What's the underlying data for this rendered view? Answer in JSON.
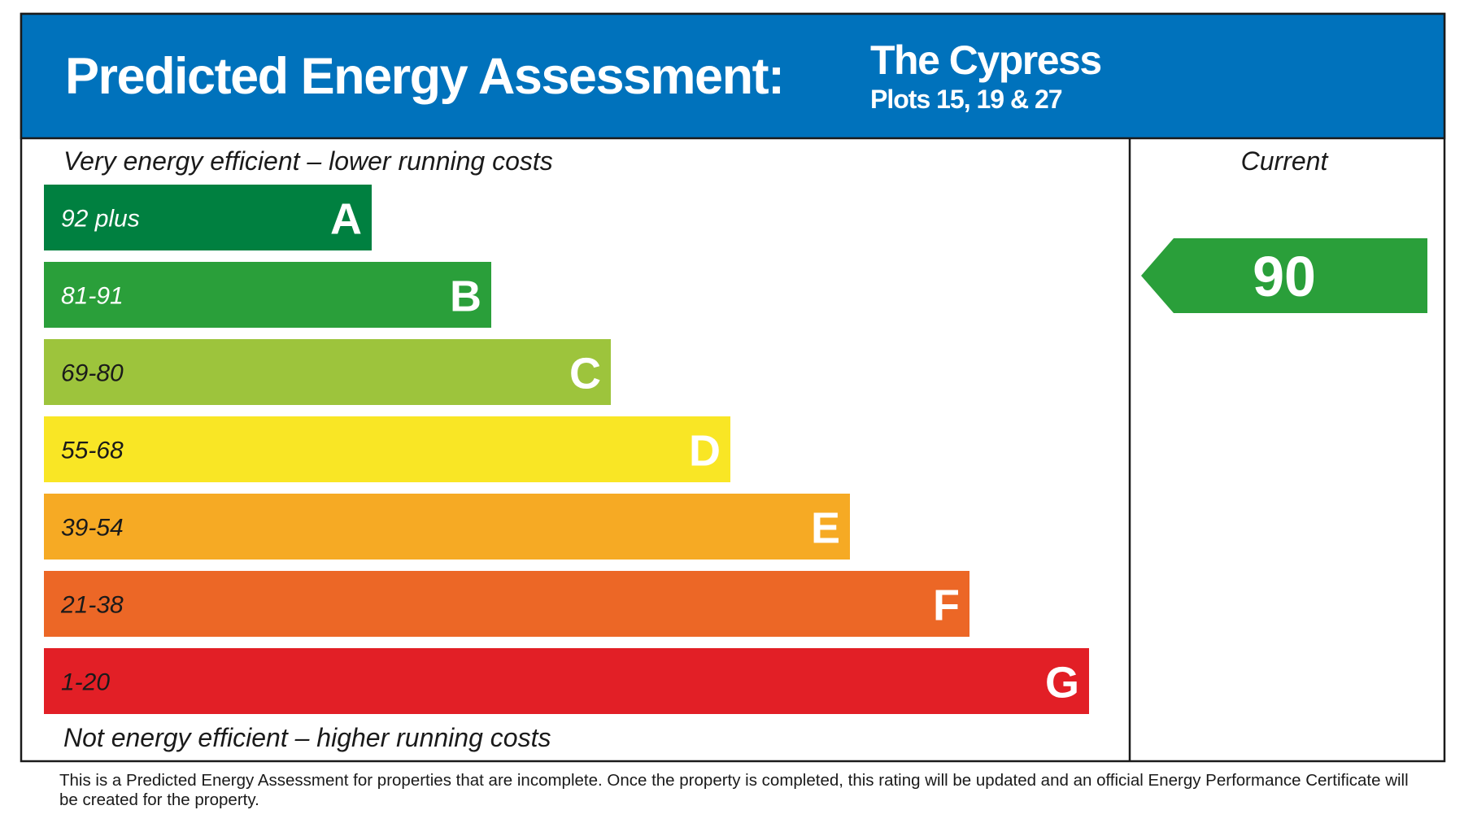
{
  "header": {
    "title": "Predicted Energy Assessment:",
    "development": "The Cypress",
    "plots": "Plots 15, 19 & 27"
  },
  "scale": {
    "top_note": "Very energy efficient – lower running costs",
    "bottom_note": "Not energy efficient – higher running costs",
    "bands": [
      {
        "range": "92 plus",
        "letter": "A",
        "color": "#008040",
        "text_color": "#ffffff"
      },
      {
        "range": "81-91",
        "letter": "B",
        "color": "#2a9f3a",
        "text_color": "#ffffff"
      },
      {
        "range": "69-80",
        "letter": "C",
        "color": "#9dc43c",
        "text_color": "#1a1a1a"
      },
      {
        "range": "55-68",
        "letter": "D",
        "color": "#f9e625",
        "text_color": "#1a1a1a"
      },
      {
        "range": "39-54",
        "letter": "E",
        "color": "#f6aa24",
        "text_color": "#1a1a1a"
      },
      {
        "range": "21-38",
        "letter": "F",
        "color": "#ec6726",
        "text_color": "#1a1a1a"
      },
      {
        "range": "1-20",
        "letter": "G",
        "color": "#e21f26",
        "text_color": "#1a1a1a"
      }
    ]
  },
  "current": {
    "label": "Current",
    "value": "90",
    "color": "#2a9f3a"
  },
  "footer": "This is a Predicted Energy Assessment for properties that are incomplete. Once the property is completed, this rating will be updated and an official Energy Performance Certificate will be created for the property."
}
